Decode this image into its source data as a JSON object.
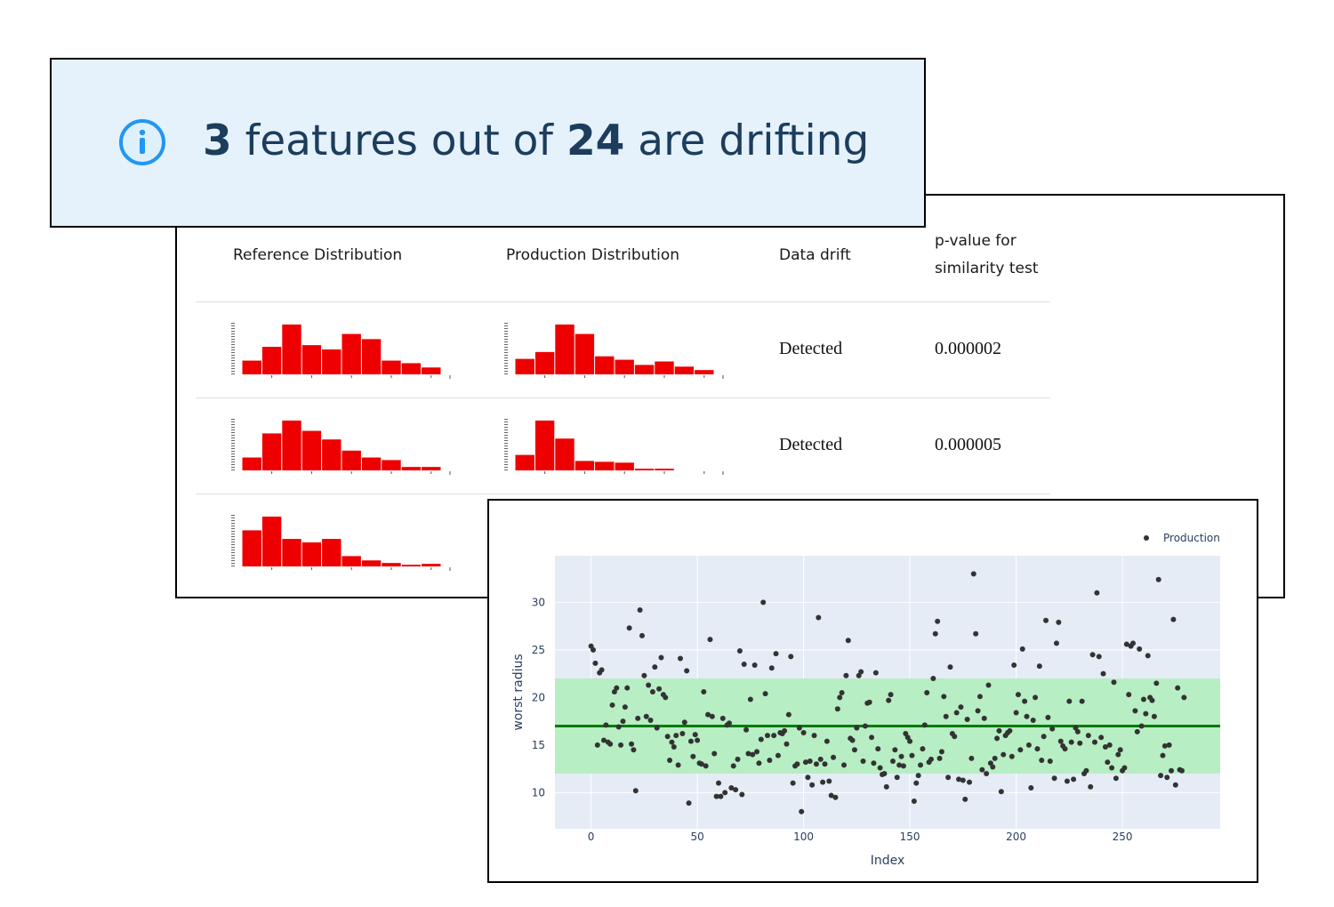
{
  "banner": {
    "drifting_count": 3,
    "text_middle": "features out of",
    "total_count": 24,
    "text_end": "are drifting"
  },
  "table": {
    "headers": [
      "Reference Distribution",
      "Production Distribution",
      "Data drift",
      "p-value for similarity test"
    ],
    "hist_ylim": [
      0,
      60
    ],
    "color": "#ee0000",
    "rows": [
      {
        "reference": [
          16,
          32,
          58,
          34,
          29,
          47,
          41,
          16,
          13,
          8
        ],
        "production": [
          18,
          26,
          58,
          47,
          21,
          17,
          11,
          15,
          9,
          5
        ],
        "drift": "Detected",
        "p_value": "0.000002"
      },
      {
        "reference": [
          15,
          43,
          58,
          46,
          36,
          23,
          15,
          12,
          4,
          4
        ],
        "production": [
          18,
          58,
          37,
          11,
          10,
          9,
          2,
          2,
          0,
          0
        ],
        "drift": "Detected",
        "p_value": "0.000005"
      },
      {
        "reference": [
          42,
          58,
          32,
          28,
          32,
          12,
          7,
          4,
          2,
          3
        ]
      }
    ]
  },
  "chart_data": {
    "type": "scatter",
    "x_label": "Index",
    "y_label": "worst radius",
    "xlim": [
      -17,
      296
    ],
    "ylim": [
      6.2,
      34.9
    ],
    "xticks": [
      0,
      50,
      100,
      150,
      200,
      250
    ],
    "yticks": [
      10,
      15,
      20,
      25,
      30
    ],
    "grid": true,
    "background": "#e5ecf6",
    "legend": "top-right",
    "reference_band": [
      12,
      22
    ],
    "band_color": "#b8eec4",
    "reference_line": 17,
    "line_color": "#007a00",
    "x": [
      0,
      1,
      2,
      3,
      4,
      5,
      6,
      7,
      8,
      9,
      10,
      11,
      12,
      13,
      14,
      15,
      16,
      17,
      18,
      19,
      20,
      21,
      22,
      23,
      24,
      25,
      26,
      27,
      28,
      29,
      30,
      31,
      32,
      33,
      34,
      35,
      36,
      37,
      38,
      39,
      40,
      41,
      42,
      43,
      44,
      45,
      46,
      47,
      48,
      49,
      50,
      51,
      52,
      53,
      54,
      55,
      56,
      57,
      58,
      59,
      60,
      61,
      62,
      63,
      64,
      65,
      66,
      67,
      68,
      69,
      70,
      71,
      72,
      73,
      74,
      75,
      76,
      77,
      78,
      79,
      80,
      81,
      82,
      83,
      84,
      85,
      86,
      87,
      88,
      89,
      90,
      91,
      92,
      93,
      94,
      95,
      96,
      97,
      98,
      99,
      100,
      101,
      102,
      103,
      104,
      105,
      106,
      107,
      108,
      109,
      110,
      111,
      112,
      113,
      114,
      115,
      116,
      117,
      118,
      119,
      120,
      121,
      122,
      123,
      124,
      125,
      126,
      127,
      128,
      129,
      130,
      131,
      132,
      133,
      134,
      135,
      136,
      137,
      138,
      139,
      140,
      141,
      142,
      143,
      144,
      145,
      146,
      147,
      148,
      149,
      150,
      151,
      152,
      153,
      154,
      155,
      156,
      157,
      158,
      159,
      160,
      161,
      162,
      163,
      164,
      165,
      166,
      167,
      168,
      169,
      170,
      171,
      172,
      173,
      174,
      175,
      176,
      177,
      178,
      179,
      180,
      181,
      182,
      183,
      184,
      185,
      186,
      187,
      188,
      189,
      190,
      191,
      192,
      193,
      194,
      195,
      196,
      197,
      198,
      199,
      200,
      201,
      202,
      203,
      204,
      205,
      206,
      207,
      208,
      209,
      210,
      211,
      212,
      213,
      214,
      215,
      216,
      217,
      218,
      219,
      220,
      221,
      222,
      223,
      224,
      225,
      226,
      227,
      228,
      229,
      230,
      231,
      232,
      233,
      234,
      235,
      236,
      237,
      238,
      239,
      240,
      241,
      242,
      243,
      244,
      245,
      246,
      247,
      248,
      249,
      250,
      251,
      252,
      253,
      254,
      255,
      256,
      257,
      258,
      259,
      260,
      261,
      262,
      263,
      264,
      265,
      266,
      267,
      268,
      269,
      270,
      271,
      272,
      273,
      274,
      275,
      276,
      277,
      278,
      279
    ],
    "series": [
      {
        "name": "Production",
        "color": "#333333",
        "values": [
          25.4,
          25.0,
          23.6,
          15.0,
          22.6,
          22.9,
          15.5,
          17.1,
          15.3,
          15.1,
          19.2,
          20.6,
          21.0,
          16.9,
          15.0,
          17.5,
          19.0,
          21.0,
          27.3,
          15.1,
          14.5,
          10.2,
          17.8,
          29.2,
          26.5,
          22.3,
          18.0,
          21.3,
          17.6,
          20.6,
          23.2,
          16.8,
          20.9,
          24.2,
          20.3,
          20.0,
          15.9,
          13.4,
          15.3,
          14.8,
          16.0,
          12.9,
          24.1,
          16.2,
          17.4,
          22.8,
          8.9,
          15.4,
          13.8,
          16.1,
          15.5,
          13.1,
          13.0,
          20.6,
          12.8,
          18.2,
          26.1,
          18.0,
          14.1,
          9.6,
          11.0,
          9.6,
          17.8,
          10.0,
          17.1,
          17.3,
          10.5,
          12.8,
          10.3,
          13.5,
          24.9,
          9.8,
          23.5,
          16.6,
          14.1,
          19.8,
          14.0,
          23.4,
          14.3,
          13.1,
          15.6,
          30.0,
          20.4,
          16.0,
          13.4,
          23.1,
          16.0,
          24.6,
          13.9,
          16.3,
          16.2,
          16.5,
          15.1,
          18.2,
          24.3,
          11.0,
          12.8,
          13.0,
          16.8,
          8.0,
          16.3,
          13.2,
          11.6,
          13.3,
          10.8,
          16.0,
          13.0,
          28.4,
          13.5,
          11.1,
          13.0,
          15.4,
          11.2,
          9.7,
          13.7,
          9.5,
          18.8,
          20.0,
          20.5,
          12.9,
          22.3,
          26.0,
          15.7,
          15.5,
          14.5,
          16.8,
          22.3,
          22.7,
          13.3,
          17.0,
          19.4,
          19.5,
          15.8,
          13.1,
          22.6,
          14.6,
          12.6,
          11.9,
          12.0,
          10.6,
          19.7,
          20.3,
          13.3,
          14.5,
          11.6,
          12.9,
          13.8,
          12.8,
          16.2,
          15.8,
          15.4,
          13.9,
          9.1,
          11.0,
          11.8,
          12.9,
          14.6,
          17.1,
          20.5,
          13.2,
          13.5,
          22.0,
          26.7,
          28.0,
          13.6,
          14.3,
          20.1,
          18.0,
          11.6,
          23.2,
          16.2,
          15.9,
          18.4,
          11.4,
          19.0,
          11.3,
          9.3,
          17.7,
          11.1,
          13.6,
          33.0,
          26.7,
          18.6,
          20.1,
          12.4,
          17.8,
          12.0,
          21.3,
          13.1,
          12.7,
          13.6,
          15.7,
          16.5,
          10.1,
          14.0,
          16.0,
          16.3,
          16.5,
          13.8,
          23.4,
          18.4,
          20.3,
          14.5,
          25.1,
          19.6,
          18.0,
          15.0,
          10.5,
          17.6,
          20.0,
          14.6,
          23.3,
          13.4,
          15.9,
          28.1,
          17.9,
          13.3,
          16.7,
          11.5,
          25.7,
          27.9,
          15.4,
          14.9,
          14.6,
          11.2,
          19.6,
          15.3,
          11.4,
          16.8,
          16.4,
          15.2,
          19.6,
          12.0,
          12.3,
          16.0,
          10.6,
          24.5,
          15.3,
          31.0,
          24.3,
          15.8,
          22.5,
          14.8,
          13.2,
          15.0,
          12.6,
          21.6,
          11.5,
          14.0,
          14.5,
          12.3,
          12.6,
          25.6,
          20.3,
          25.4,
          25.7,
          18.6,
          16.4,
          25.1,
          17.0,
          19.8,
          18.3,
          24.4,
          20.0,
          19.7,
          18.0,
          21.5,
          32.4,
          11.8,
          13.9,
          14.9,
          11.6,
          15.0,
          12.3,
          28.2,
          10.8,
          21.0,
          12.4,
          12.3,
          20.0
        ]
      }
    ]
  }
}
